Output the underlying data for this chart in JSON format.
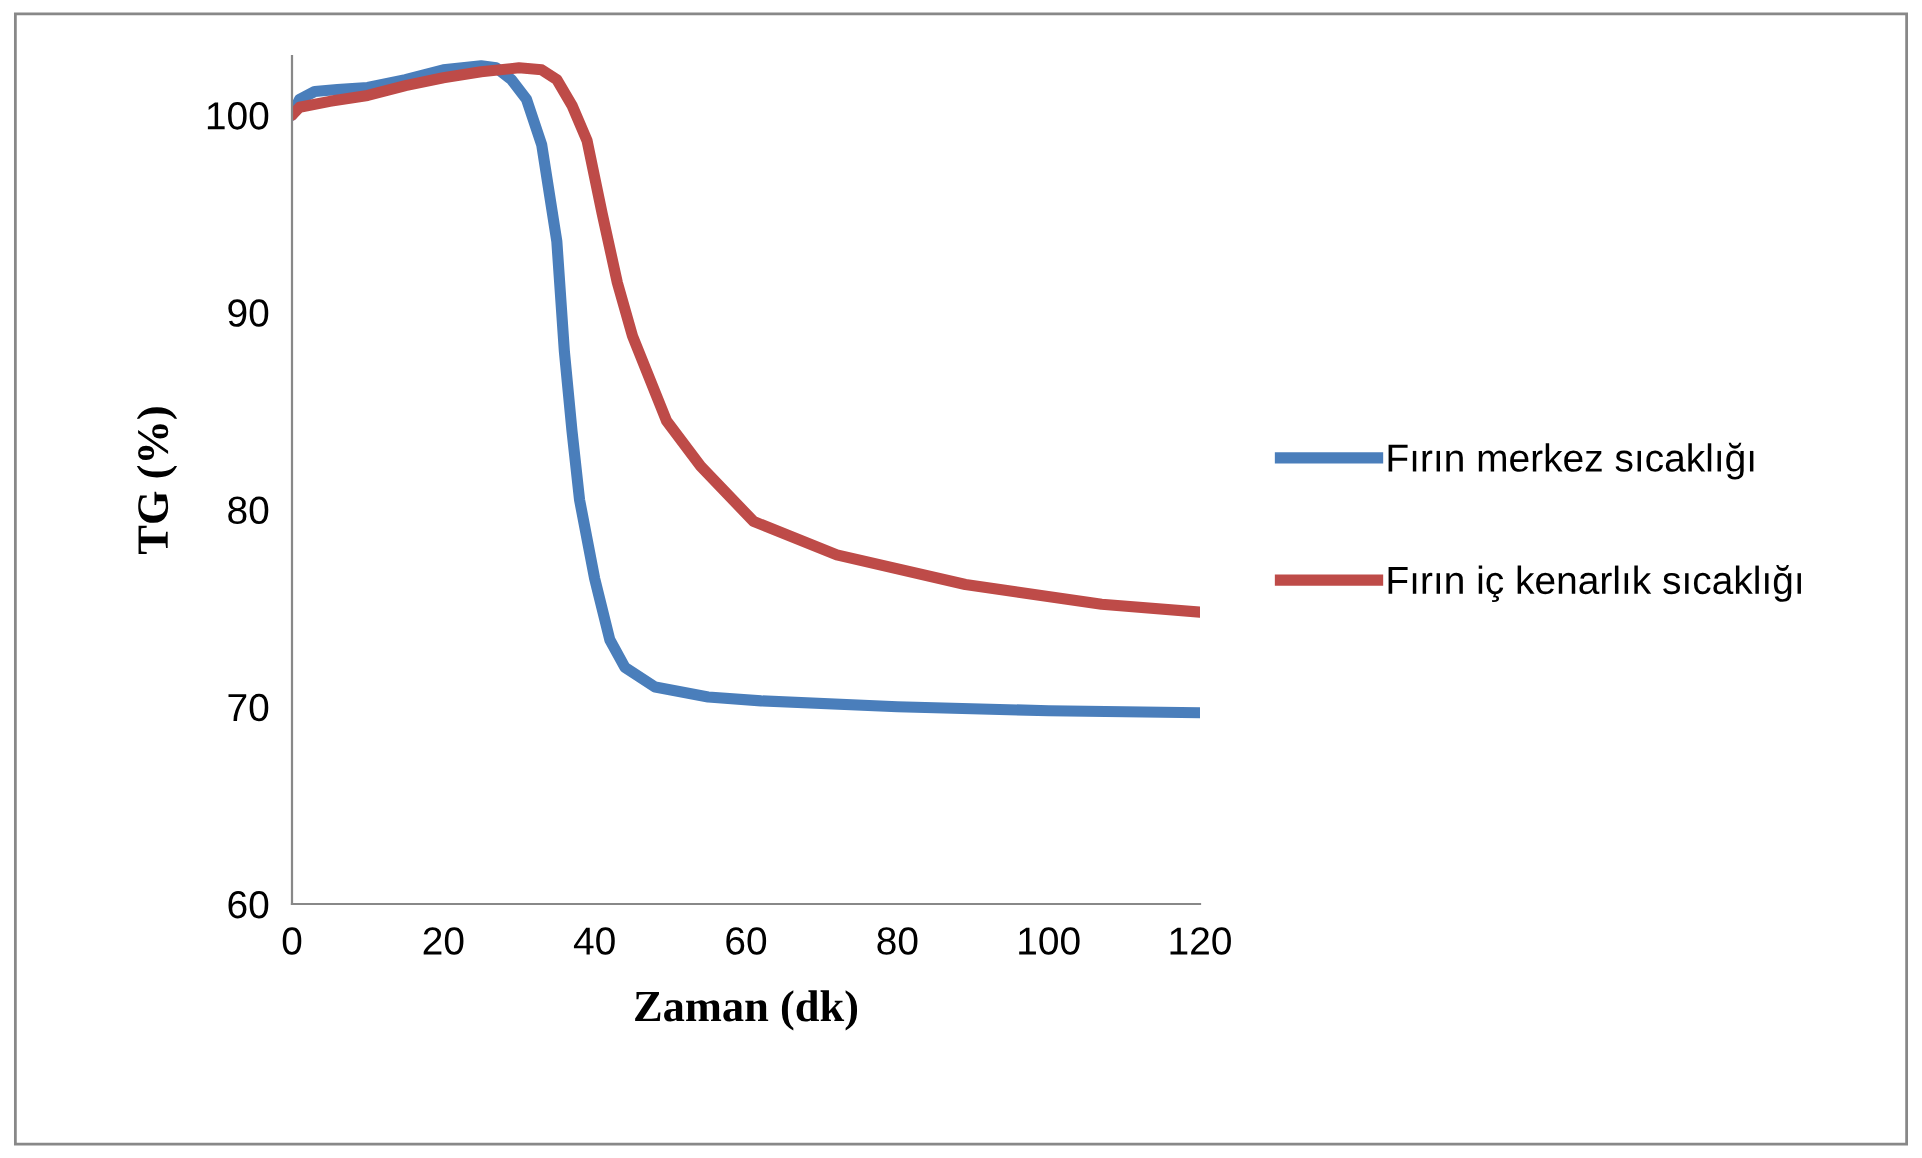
{
  "chart_data": {
    "type": "line",
    "xlabel": "Zaman (dk)",
    "ylabel": "TG (%)",
    "xlim": [
      0,
      120
    ],
    "xticks": [
      0,
      20,
      40,
      60,
      80,
      100,
      120
    ],
    "ylim": [
      60,
      103
    ],
    "yticks": [
      60,
      70,
      80,
      90,
      100
    ],
    "grid": false,
    "legend": "right",
    "marker": "none",
    "line_style": "solid",
    "series": [
      {
        "name": "Fırın merkez sıcaklığı",
        "color": "#4a7ebb",
        "x": [
          0,
          1,
          3,
          6,
          10,
          15,
          20,
          25,
          27,
          29,
          31,
          33,
          35,
          36,
          37,
          38,
          40,
          42,
          44,
          48,
          55,
          62,
          80,
          100,
          120
        ],
        "values": [
          100,
          100.8,
          101.2,
          101.3,
          101.4,
          101.8,
          102.3,
          102.5,
          102.4,
          101.8,
          100.8,
          98.5,
          93.6,
          88,
          84,
          80.5,
          76.5,
          73.4,
          72,
          71,
          70.5,
          70.3,
          70,
          69.8,
          69.7
        ]
      },
      {
        "name": "Fırın iç kenarlık sıcaklığı",
        "color": "#be4b48",
        "x": [
          0,
          1,
          5,
          10,
          15,
          20,
          25,
          30,
          33,
          35,
          37,
          39,
          41,
          43,
          45,
          49.5,
          54,
          61,
          72,
          89,
          107,
          120
        ],
        "values": [
          100,
          100.4,
          100.7,
          101,
          101.5,
          101.9,
          102.2,
          102.4,
          102.3,
          101.8,
          100.5,
          98.7,
          95,
          91.5,
          88.8,
          84.5,
          82.2,
          79.4,
          77.7,
          76.2,
          75.2,
          74.8
        ]
      }
    ]
  }
}
